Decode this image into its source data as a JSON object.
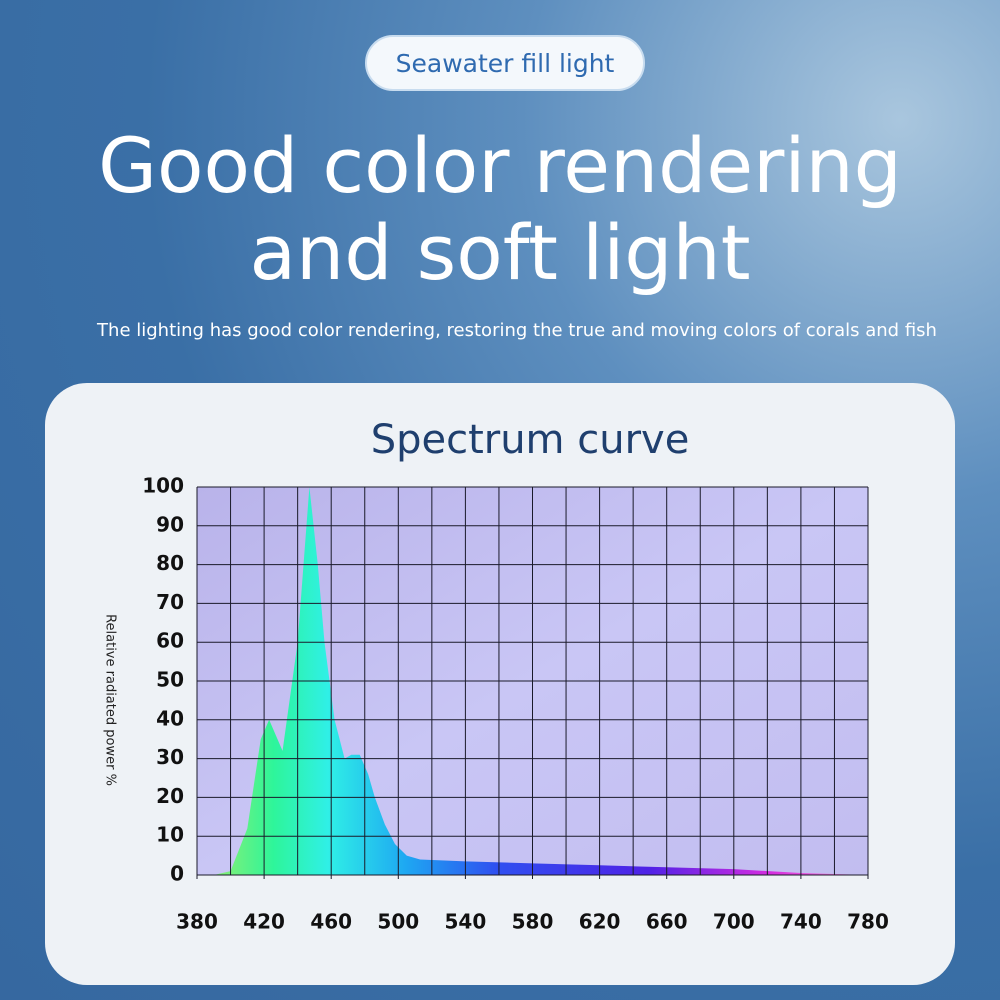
{
  "badge": "Seawater fill light",
  "headline": [
    "Good color rendering",
    "and soft light"
  ],
  "subtitle": "The lighting has good color rendering, restoring the true and moving colors of corals and fish",
  "chart_data": {
    "type": "area",
    "title": "Spectrum curve",
    "y_label": "Relative radiated power %",
    "x": [
      380,
      390,
      400,
      410,
      418,
      423,
      431,
      440,
      447,
      452,
      456,
      462,
      468,
      472,
      477,
      482,
      486,
      492,
      498,
      505,
      513,
      540,
      580,
      620,
      660,
      700,
      740,
      780
    ],
    "values": [
      0,
      0,
      1,
      12,
      35,
      40,
      32,
      60,
      100,
      80,
      60,
      40,
      30,
      31,
      31,
      26,
      20,
      13,
      8,
      5,
      4,
      3.5,
      3,
      2.5,
      2,
      1.5,
      0.5,
      0
    ],
    "xlim": [
      380,
      780
    ],
    "ylim": [
      0,
      100
    ],
    "xticks": [
      380,
      420,
      460,
      500,
      540,
      580,
      620,
      660,
      700,
      740,
      780
    ],
    "yticks": [
      0,
      10,
      20,
      30,
      40,
      50,
      60,
      70,
      80,
      90,
      100
    ],
    "grid": true
  }
}
